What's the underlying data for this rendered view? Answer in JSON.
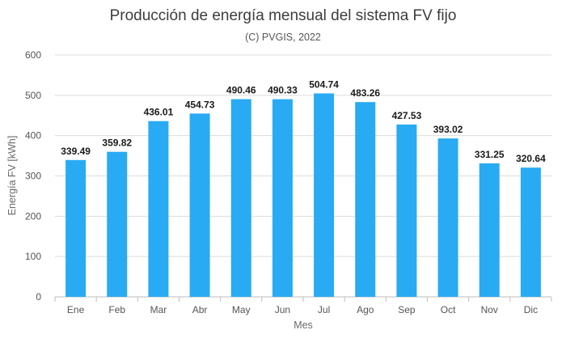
{
  "chart_data": {
    "type": "bar",
    "title": "Producción de energía mensual del sistema FV fijo",
    "subtitle": "(C) PVGIS, 2022",
    "xlabel": "Mes",
    "ylabel": "Energía FV [kWh]",
    "categories": [
      "Ene",
      "Feb",
      "Mar",
      "Abr",
      "May",
      "Jun",
      "Jul",
      "Ago",
      "Sep",
      "Oct",
      "Nov",
      "Dic"
    ],
    "values": [
      339.49,
      359.82,
      436.01,
      454.73,
      490.46,
      490.33,
      504.74,
      483.26,
      427.53,
      393.02,
      331.25,
      320.64
    ],
    "data_labels": [
      "339.49",
      "359.82",
      "436.01",
      "454.73",
      "490.46",
      "490.33",
      "504.74",
      "483.26",
      "427.53",
      "393.02",
      "331.25",
      "320.64"
    ],
    "yticks": [
      "0",
      "100",
      "200",
      "300",
      "400",
      "500",
      "600"
    ],
    "ylim": [
      0,
      600
    ],
    "grid": true,
    "legend": "none",
    "bar_color": "#29abf3",
    "grid_color": "#dcdcdc"
  }
}
